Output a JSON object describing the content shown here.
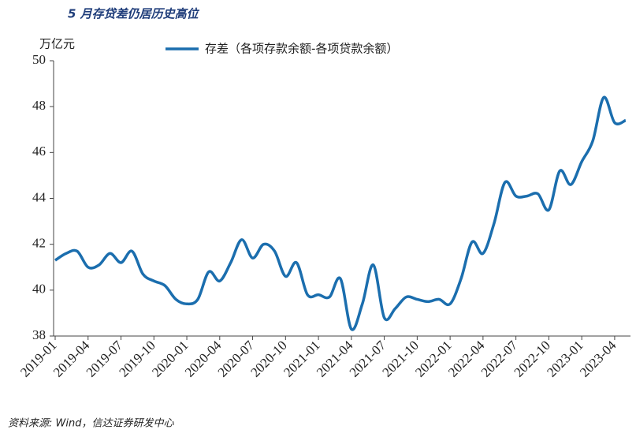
{
  "chart_data": {
    "type": "line",
    "title": "5 月存贷差仍居历史高位",
    "y_label": "万亿元",
    "source": "资料来源: Wind，信达证券研发中心",
    "categories": [
      "2019-01",
      null,
      null,
      "2019-04",
      null,
      null,
      "2019-07",
      null,
      null,
      "2019-10",
      null,
      null,
      "2020-01",
      null,
      null,
      "2020-04",
      null,
      null,
      "2020-07",
      null,
      null,
      "2020-10",
      null,
      null,
      "2021-01",
      null,
      null,
      "2021-04",
      null,
      null,
      "2021-07",
      null,
      null,
      "2021-10",
      null,
      null,
      "2022-01",
      null,
      null,
      "2022-04",
      null,
      null,
      "2022-07",
      null,
      null,
      "2022-10",
      null,
      null,
      "2023-01",
      null,
      null,
      "2023-04",
      null
    ],
    "series": [
      {
        "name": "存差（各项存款余额-各项贷款余额）",
        "color": "#1b6eae",
        "values": [
          41.3,
          41.6,
          41.7,
          41.0,
          41.1,
          41.6,
          41.2,
          41.7,
          40.7,
          40.4,
          40.2,
          39.6,
          39.4,
          39.6,
          40.8,
          40.4,
          41.2,
          42.2,
          41.4,
          42.0,
          41.7,
          40.6,
          41.2,
          39.8,
          39.8,
          39.7,
          40.5,
          38.3,
          39.4,
          41.1,
          38.8,
          39.2,
          39.7,
          39.6,
          39.5,
          39.6,
          39.4,
          40.5,
          42.1,
          41.6,
          42.9,
          44.7,
          44.1,
          44.1,
          44.2,
          43.5,
          45.2,
          44.6,
          45.6,
          46.5,
          48.4,
          47.3,
          47.4
        ]
      }
    ],
    "ylim": [
      38,
      50
    ],
    "yticks": [
      38,
      40,
      42,
      44,
      46,
      48,
      50
    ],
    "legend": "top"
  }
}
